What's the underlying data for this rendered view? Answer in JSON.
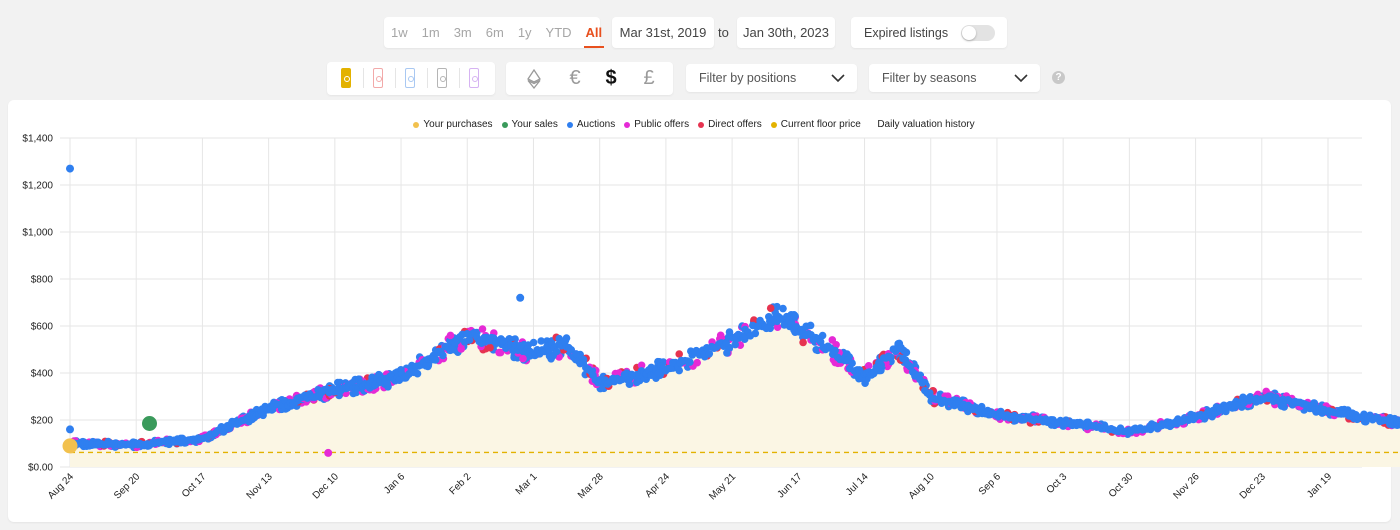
{
  "toolbar": {
    "ranges": [
      "1w",
      "1m",
      "3m",
      "6m",
      "1y",
      "YTD",
      "All"
    ],
    "active_range": "All",
    "date_from": "Mar 31st, 2019",
    "to_label": "to",
    "date_to": "Jan 30th, 2023",
    "expired_label": "Expired listings",
    "expired_enabled": false,
    "cards": [
      {
        "name": "limited-card",
        "color": "#e3b200",
        "fill": true
      },
      {
        "name": "rare-card",
        "color": "#f2a9a9",
        "fill": false
      },
      {
        "name": "super-rare-card",
        "color": "#a9c8f2",
        "fill": false
      },
      {
        "name": "unique-card",
        "color": "#b5b5b5",
        "fill": false
      },
      {
        "name": "custom-card",
        "color": "#d6b3f2",
        "fill": false
      }
    ],
    "currencies": [
      "ethereum-icon",
      "€",
      "$",
      "£"
    ],
    "active_currency": "$",
    "positions_placeholder": "Filter by positions",
    "seasons_placeholder": "Filter by seasons",
    "help_icon": "?"
  },
  "legend": [
    {
      "label": "Your purchases",
      "color": "#f2c14e"
    },
    {
      "label": "Your sales",
      "color": "#3a9a5b"
    },
    {
      "label": "Auctions",
      "color": "#2f7ff0"
    },
    {
      "label": "Public offers",
      "color": "#e52ad6"
    },
    {
      "label": "Direct offers",
      "color": "#e63350"
    },
    {
      "label": "Current floor price",
      "color": "#e3b200"
    },
    {
      "label": "Daily valuation history",
      "color": ""
    }
  ],
  "chart_data": {
    "type": "scatter",
    "title": "",
    "xlabel": "",
    "ylabel": "",
    "ylim": [
      0,
      1400
    ],
    "y_ticks": [
      "$0.00",
      "$200",
      "$400",
      "$600",
      "$800",
      "$1,000",
      "$1,200",
      "$1,400"
    ],
    "x_ticks": [
      "Aug 24",
      "Sep 20",
      "Oct 17",
      "Nov 13",
      "Dec 10",
      "Jan 6",
      "Feb 2",
      "Mar 1",
      "Mar 28",
      "Apr 24",
      "May 21",
      "Jun 17",
      "Jul 14",
      "Aug 10",
      "Sep 6",
      "Oct 3",
      "Oct 30",
      "Nov 26",
      "Dec 23",
      "Jan 19"
    ],
    "grid": true,
    "legend_position": "top-center",
    "floor_price": 62,
    "valuation_history": [
      {
        "t": 0.0,
        "v": 100
      },
      {
        "t": 1.0,
        "v": 95
      },
      {
        "t": 2.0,
        "v": 120
      },
      {
        "t": 3.0,
        "v": 250
      },
      {
        "t": 4.0,
        "v": 330
      },
      {
        "t": 5.0,
        "v": 380
      },
      {
        "t": 6.0,
        "v": 560
      },
      {
        "t": 7.0,
        "v": 490
      },
      {
        "t": 7.5,
        "v": 520
      },
      {
        "t": 8.0,
        "v": 360
      },
      {
        "t": 9.0,
        "v": 420
      },
      {
        "t": 10.0,
        "v": 540
      },
      {
        "t": 10.7,
        "v": 640
      },
      {
        "t": 11.5,
        "v": 500
      },
      {
        "t": 12.0,
        "v": 380
      },
      {
        "t": 12.5,
        "v": 510
      },
      {
        "t": 13.0,
        "v": 300
      },
      {
        "t": 14.0,
        "v": 220
      },
      {
        "t": 15.0,
        "v": 190
      },
      {
        "t": 16.0,
        "v": 150
      },
      {
        "t": 17.0,
        "v": 210
      },
      {
        "t": 18.0,
        "v": 300
      },
      {
        "t": 19.0,
        "v": 240
      },
      {
        "t": 20.0,
        "v": 190
      },
      {
        "t": 21.0,
        "v": 140
      },
      {
        "t": 21.5,
        "v": 70
      },
      {
        "t": 22.0,
        "v": 65
      },
      {
        "t": 23.0,
        "v": 60
      },
      {
        "t": 24.0,
        "v": 70
      },
      {
        "t": 25.0,
        "v": 85
      },
      {
        "t": 25.6,
        "v": 70
      }
    ],
    "series": [
      {
        "name": "Your purchases",
        "points": [
          {
            "t": 0.0,
            "v": 90
          }
        ]
      },
      {
        "name": "Your sales",
        "points": [
          {
            "t": 1.2,
            "v": 185
          }
        ]
      },
      {
        "name": "Auctions",
        "points": [
          {
            "t": 0.0,
            "v": 1270
          },
          {
            "t": 0.0,
            "v": 160
          },
          {
            "t": 6.8,
            "v": 720
          }
        ]
      },
      {
        "name": "Public offers",
        "points": [
          {
            "t": 3.9,
            "v": 60
          }
        ]
      },
      {
        "name": "Direct offers",
        "points": []
      }
    ]
  }
}
